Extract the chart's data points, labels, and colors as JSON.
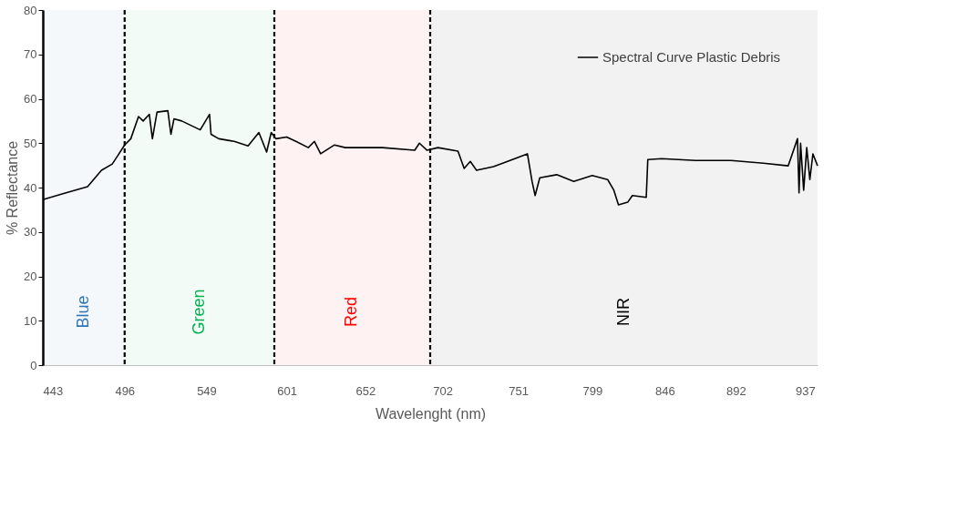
{
  "chart_data": {
    "type": "line",
    "xlabel": "Wavelenght (nm)",
    "ylabel": "% Reflectance",
    "xlim": [
      443,
      945
    ],
    "xticks": [
      443,
      496,
      549,
      601,
      652,
      702,
      751,
      799,
      846,
      892,
      937
    ],
    "ylim": [
      0,
      80
    ],
    "yticks": [
      0,
      10,
      20,
      30,
      40,
      50,
      60,
      70,
      80
    ],
    "grid": false,
    "legend": "top right",
    "marker": "none",
    "line_style": "solid",
    "series": [
      {
        "name": "Spectral Curve Plastic Debris",
        "color": "#000000",
        "x": [
          443,
          456,
          472,
          481,
          488,
          491,
          496,
          500,
          505,
          508,
          512,
          514,
          517,
          524,
          526,
          528,
          533,
          545,
          551,
          552,
          557,
          567,
          576,
          583,
          588,
          591,
          594,
          601,
          607,
          615,
          619,
          623,
          632,
          639,
          652,
          663,
          684,
          687,
          692,
          699,
          712,
          716,
          720,
          724,
          735,
          741,
          757,
          760,
          762,
          765,
          776,
          787,
          799,
          809,
          813,
          816,
          822,
          825,
          834,
          835,
          844,
          866,
          889,
          910,
          926,
          932,
          933,
          934,
          936,
          938,
          940,
          942,
          945
        ],
        "values": [
          37.3,
          38.6,
          40.2,
          43.9,
          45.3,
          46.9,
          49.6,
          51,
          56,
          55,
          56.5,
          51,
          57,
          57.3,
          52,
          55.5,
          55,
          53,
          56.5,
          52,
          51,
          50.4,
          49.4,
          52.4,
          48,
          52.4,
          51,
          51.4,
          50.4,
          49,
          50.4,
          47.6,
          49.6,
          49,
          49,
          49,
          48.4,
          50,
          48.4,
          49,
          48.2,
          44.3,
          45.9,
          43.9,
          44.7,
          45.5,
          47.6,
          41.4,
          38.2,
          42.2,
          42.9,
          41.4,
          42.7,
          41.8,
          39.4,
          36.1,
          36.7,
          38.2,
          37.8,
          46.3,
          46.5,
          46.1,
          46.1,
          45.5,
          44.9,
          51,
          38.8,
          50,
          39.4,
          49,
          41.8,
          47.6,
          44.9
        ]
      }
    ],
    "ref_lines": [
      {
        "axis": "x",
        "value": 496,
        "color": "#000000",
        "line_style": "dashed"
      },
      {
        "axis": "x",
        "value": 593,
        "color": "#000000",
        "line_style": "dashed"
      },
      {
        "axis": "x",
        "value": 694,
        "color": "#000000",
        "line_style": "dashed"
      }
    ],
    "bands": [
      {
        "axis": "x",
        "from": 443,
        "to": 496,
        "label": "Blue",
        "color": "#2e75b6"
      },
      {
        "axis": "x",
        "from": 496,
        "to": 593,
        "label": "Green",
        "color": "#00b050"
      },
      {
        "axis": "x",
        "from": 593,
        "to": 694,
        "label": "Red",
        "color": "#ff0000"
      },
      {
        "axis": "x",
        "from": 694,
        "to": 945,
        "label": "NIR",
        "color": "#000000"
      }
    ]
  }
}
